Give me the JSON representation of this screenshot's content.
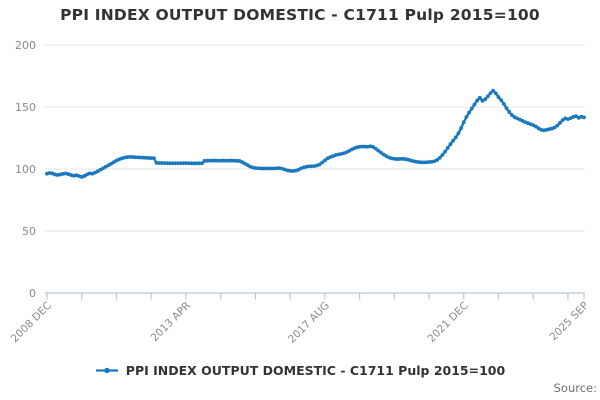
{
  "title": "PPI INDEX OUTPUT DOMESTIC - C1711 Pulp 2015=100",
  "legend": {
    "label": "PPI INDEX OUTPUT DOMESTIC - C1711 Pulp 2015=100"
  },
  "source": {
    "label": "Source:"
  },
  "colors": {
    "line": "#1a78be",
    "grid": "#e4e4e4",
    "axis": "#b9c6d8",
    "title_text": "#333333",
    "legend_text": "#333333",
    "tick_text": "#8a8a8a",
    "source_text": "#707070",
    "background": "#ffffff"
  },
  "chart_data": {
    "type": "line",
    "title": "PPI INDEX OUTPUT DOMESTIC - C1711 Pulp 2015=100",
    "x_unit": "month",
    "x_start": "2008 DEC",
    "x_end": "2025 SEP",
    "n_points": 202,
    "ylim": [
      0,
      200
    ],
    "yticks": [
      0,
      50,
      100,
      150,
      200
    ],
    "xtick_labels": [
      "2008 DEC",
      "2013 APR",
      "2017 AUG",
      "2021 DEC",
      "2025 SEP"
    ],
    "xtick_indices": [
      0,
      52,
      104,
      156,
      201
    ],
    "minor_tick_step": 13,
    "grid": "horizontal",
    "legend_position": "bottom",
    "marker": "circle",
    "series": [
      {
        "name": "PPI INDEX OUTPUT DOMESTIC - C1711 Pulp 2015=100",
        "values": [
          96.2,
          96.8,
          96.4,
          95.6,
          95.2,
          95.6,
          96.1,
          96.4,
          95.9,
          95.1,
          94.6,
          94.9,
          94.3,
          93.6,
          94.4,
          95.6,
          96.5,
          96.2,
          97.1,
          98.2,
          99.4,
          100.6,
          101.8,
          103.0,
          104.2,
          105.5,
          106.8,
          107.8,
          108.6,
          109.2,
          109.6,
          109.8,
          109.7,
          109.5,
          109.4,
          109.3,
          109.2,
          109.0,
          108.9,
          108.8,
          108.7,
          104.9,
          104.8,
          104.8,
          104.7,
          104.7,
          104.6,
          104.6,
          104.6,
          104.6,
          104.6,
          104.7,
          104.7,
          104.6,
          104.6,
          104.5,
          104.6,
          104.6,
          104.6,
          106.6,
          106.7,
          106.7,
          106.8,
          106.8,
          106.7,
          106.7,
          106.8,
          106.7,
          106.7,
          106.8,
          106.7,
          106.6,
          106.5,
          105.6,
          104.4,
          103.2,
          102.0,
          101.2,
          100.8,
          100.6,
          100.5,
          100.4,
          100.4,
          100.5,
          100.4,
          100.5,
          100.6,
          100.7,
          100.3,
          99.6,
          98.9,
          98.5,
          98.4,
          98.6,
          99.3,
          100.4,
          101.2,
          101.8,
          102.1,
          102.2,
          102.3,
          102.8,
          103.6,
          105.2,
          106.9,
          108.5,
          109.6,
          110.4,
          111.2,
          111.7,
          112.1,
          112.6,
          113.4,
          114.5,
          115.7,
          116.7,
          117.5,
          117.9,
          118.1,
          118.0,
          117.9,
          118.3,
          117.8,
          116.5,
          114.8,
          113.2,
          111.7,
          110.4,
          109.3,
          108.6,
          108.2,
          108.0,
          108.1,
          108.2,
          108.0,
          107.6,
          107.0,
          106.4,
          105.9,
          105.6,
          105.4,
          105.3,
          105.4,
          105.6,
          105.8,
          106.2,
          107.3,
          109.0,
          111.3,
          114.0,
          117.0,
          120.0,
          122.8,
          125.5,
          128.8,
          133.0,
          137.8,
          142.0,
          145.5,
          148.8,
          152.0,
          155.2,
          157.4,
          155.0,
          156.2,
          158.6,
          161.2,
          163.2,
          161.0,
          158.0,
          155.5,
          152.5,
          149.0,
          146.0,
          143.5,
          141.8,
          140.8,
          139.8,
          138.8,
          137.8,
          137.0,
          136.2,
          135.4,
          134.2,
          132.8,
          131.6,
          131.2,
          131.6,
          132.2,
          132.6,
          133.4,
          135.0,
          137.2,
          139.4,
          140.8,
          140.2,
          141.0,
          142.0,
          142.6,
          141.2,
          142.2,
          141.6
        ]
      }
    ]
  }
}
